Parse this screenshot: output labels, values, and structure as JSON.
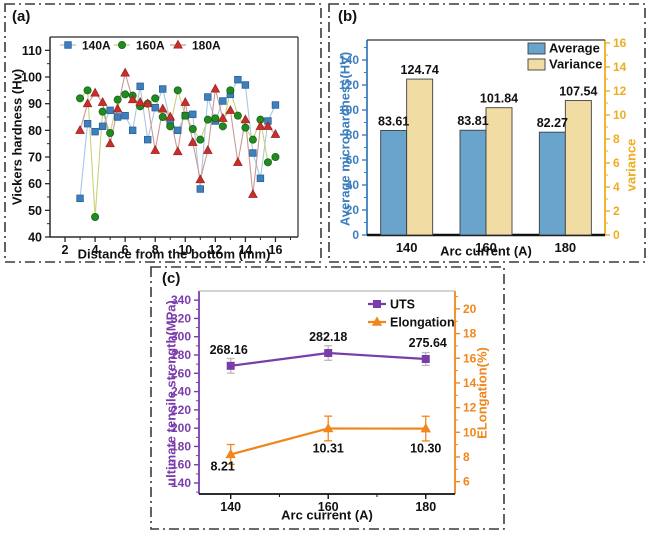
{
  "panels": {
    "a": {
      "letter": "(a)",
      "xlabel": "Distance from the bottom (mm)",
      "ylabel": "Vickers hardness (Hv)"
    },
    "b": {
      "letter": "(b)",
      "xlabel": "Arc current (A)",
      "ylabel_left": "Average microhardness(HV)",
      "ylabel_right": "variance"
    },
    "c": {
      "letter": "(c)",
      "xlabel": "Arc current (A)",
      "ylabel_left": "ultimate tensile strength(MPa)",
      "ylabel_right": "ELongation(%)"
    }
  },
  "colors": {
    "axis_blue": "#3d7ebe",
    "axis_gold": "#eead1f",
    "purple": "#7a3caa",
    "orange": "#f0861c",
    "frame_dark": "#2b2b2b",
    "border": "#3a3a3a",
    "text_black": "#111111"
  },
  "chart_data": [
    {
      "id": "a",
      "type": "line",
      "title": "",
      "xlabel": "Distance from the bottom (mm)",
      "ylabel": "Vickers hardness (Hv)",
      "xlim": [
        1,
        17.5
      ],
      "ylim": [
        40,
        115
      ],
      "xticks": [
        2,
        4,
        6,
        8,
        10,
        12,
        14,
        16
      ],
      "yticks": [
        40,
        50,
        60,
        70,
        80,
        90,
        100,
        110
      ],
      "grid": false,
      "legend_position": "top-inside-horizontal",
      "x": [
        3,
        3.5,
        4,
        4.5,
        5,
        5.5,
        6,
        6.5,
        7,
        7.5,
        8,
        8.5,
        9,
        9.5,
        10,
        10.5,
        11,
        11.5,
        12,
        12.5,
        13,
        13.5,
        14,
        14.5,
        15,
        15.5,
        16
      ],
      "series": [
        {
          "name": "140A",
          "marker": "square",
          "marker_color": "#3f7fbe",
          "edge_color": "#2a619b",
          "line_color": "#a9c7e2",
          "values": [
            54.5,
            82.5,
            79.5,
            81.5,
            87.5,
            85,
            85.5,
            80,
            96.5,
            76.5,
            88.5,
            95.5,
            83.5,
            80,
            85.5,
            86,
            58,
            92.5,
            83.5,
            91,
            93.5,
            99,
            97,
            71.5,
            62,
            83.5,
            89.5
          ]
        },
        {
          "name": "160A",
          "marker": "circle",
          "marker_color": "#218a21",
          "edge_color": "#156815",
          "line_color": "#c9d17c",
          "values": [
            92,
            95,
            47.5,
            87,
            79,
            91.5,
            93.5,
            93,
            89,
            90,
            92,
            85,
            81.5,
            95,
            85.5,
            80.5,
            76.5,
            84,
            84.5,
            81.5,
            95,
            85.5,
            81,
            76.5,
            84,
            68,
            70
          ]
        },
        {
          "name": "180A",
          "marker": "triangle",
          "marker_color": "#c62f2c",
          "edge_color": "#a32320",
          "line_color": "#c79a97",
          "values": [
            80,
            90,
            94,
            90.5,
            75,
            88,
            101.5,
            91.5,
            90.5,
            90,
            72.5,
            88,
            85,
            72,
            90.5,
            75.5,
            61.5,
            72.5,
            95.5,
            84.5,
            87.5,
            68,
            84,
            56,
            81.5,
            81.5,
            78.5
          ]
        }
      ]
    },
    {
      "id": "b",
      "type": "bar",
      "title": "",
      "xlabel": "Arc current (A)",
      "ylabel_left": "Average microhardness(HV)",
      "ylabel_right": "variance",
      "categories": [
        "140",
        "160",
        "180"
      ],
      "ylim_left": [
        0,
        156
      ],
      "yticks_left": [
        0,
        20,
        40,
        60,
        80,
        100,
        120,
        140
      ],
      "ylim_right": [
        0,
        16.25
      ],
      "yticks_right": [
        0,
        2,
        4,
        6,
        8,
        10,
        12,
        14,
        16
      ],
      "legend_position": "top-right-inside",
      "series": [
        {
          "name": "Average",
          "color": "#68a4cb",
          "edge": "#3f3f3f",
          "values": [
            83.61,
            83.81,
            82.27
          ],
          "labels": [
            "83.61",
            "83.81",
            "82.27"
          ]
        },
        {
          "name": "Variance",
          "color": "#f1dca4",
          "edge": "#3f3f3f",
          "values": [
            124.74,
            101.84,
            107.54
          ],
          "labels": [
            "124.74",
            "101.84",
            "107.54"
          ]
        }
      ]
    },
    {
      "id": "c",
      "type": "line",
      "title": "",
      "xlabel": "Arc current (A)",
      "ylabel_left": "ultimate tensile strength(MPa)",
      "ylabel_right": "ELongation(%)",
      "x": [
        140,
        160,
        180
      ],
      "xticks": [
        140,
        160,
        180
      ],
      "xlim": [
        133.5,
        186
      ],
      "ylim_left": [
        128,
        350
      ],
      "yticks_left": [
        140,
        160,
        180,
        200,
        220,
        240,
        260,
        280,
        300,
        320,
        340
      ],
      "ylim_right": [
        5,
        21.45
      ],
      "yticks_right": [
        6,
        8,
        10,
        12,
        14,
        16,
        18,
        20
      ],
      "legend_position": "top-right-inside",
      "series": [
        {
          "name": "UTS",
          "axis": "left",
          "marker": "square",
          "color": "#7a3caa",
          "err_color": "#b9b9b9",
          "values": [
            268.16,
            282.18,
            275.64
          ],
          "err": [
            8,
            8,
            7
          ],
          "labels": [
            "268.16",
            "282.18",
            "275.64"
          ],
          "label_offsets": [
            [
              -2,
              -12
            ],
            [
              0,
              -12
            ],
            [
              2,
              -12
            ]
          ]
        },
        {
          "name": "Elongation",
          "axis": "right",
          "marker": "triangle",
          "color": "#f0861c",
          "err_color": "#f0861c",
          "values": [
            8.21,
            10.31,
            10.3
          ],
          "err": [
            0.8,
            1.0,
            1.0
          ],
          "labels": [
            "8.21",
            "10.31",
            "10.30"
          ],
          "label_offsets": [
            [
              -8,
              16
            ],
            [
              0,
              24
            ],
            [
              0,
              24
            ]
          ]
        }
      ]
    }
  ]
}
